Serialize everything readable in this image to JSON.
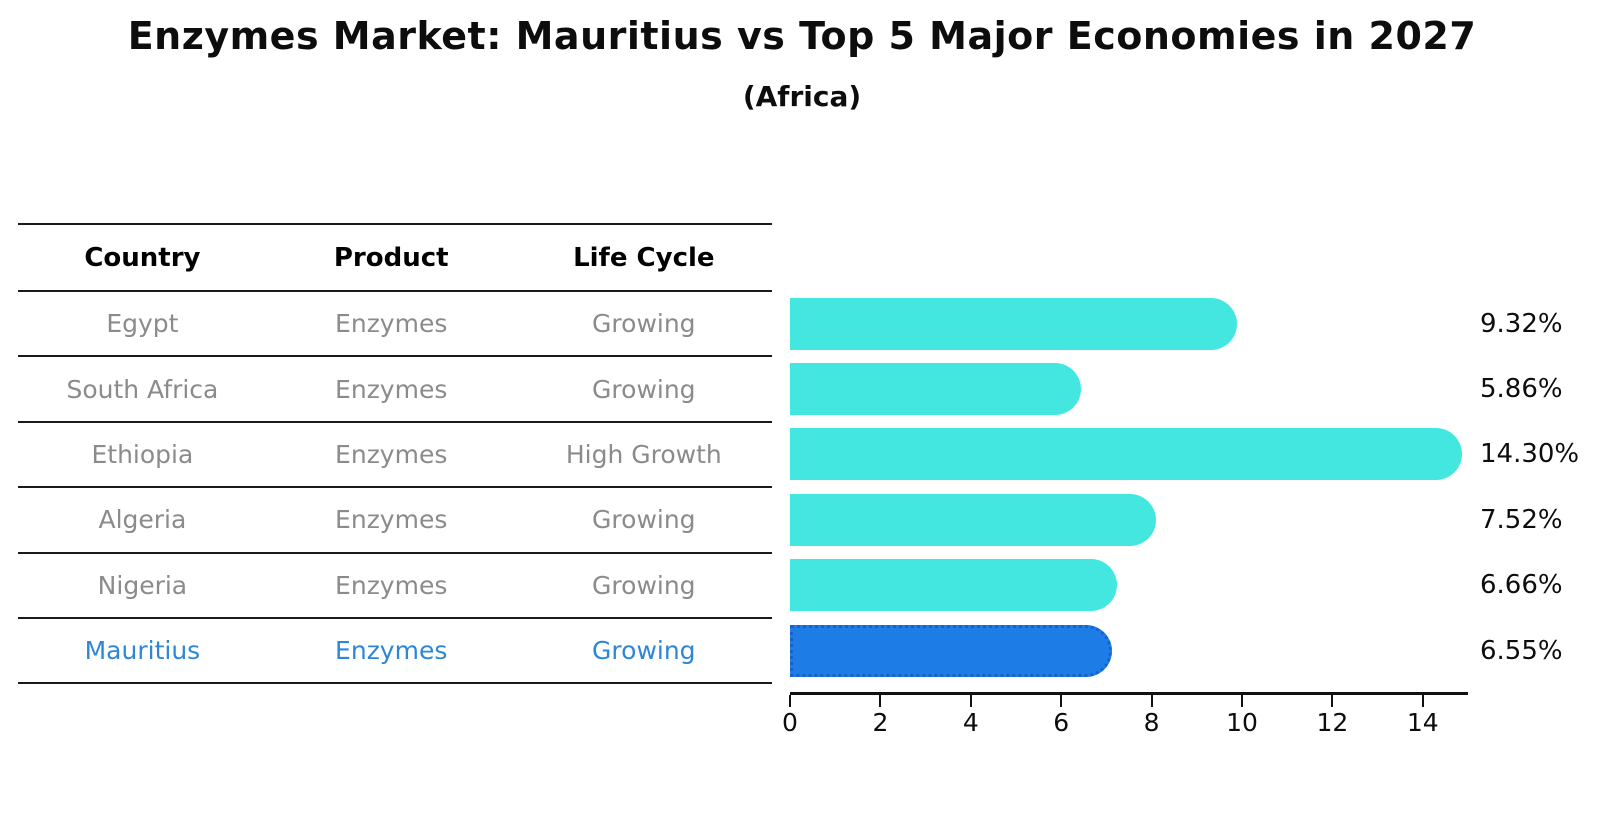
{
  "title": "Enzymes Market: Mauritius vs Top 5 Major Economies in 2027",
  "subtitle": "(Africa)",
  "table": {
    "headers": [
      "Country",
      "Product",
      "Life Cycle"
    ],
    "rows": [
      {
        "country": "Egypt",
        "product": "Enzymes",
        "life_cycle": "Growing",
        "highlight": false
      },
      {
        "country": "South Africa",
        "product": "Enzymes",
        "life_cycle": "Growing",
        "highlight": false
      },
      {
        "country": "Ethiopia",
        "product": "Enzymes",
        "life_cycle": "High Growth",
        "highlight": false
      },
      {
        "country": "Algeria",
        "product": "Enzymes",
        "life_cycle": "Growing",
        "highlight": false
      },
      {
        "country": "Nigeria",
        "product": "Enzymes",
        "life_cycle": "Growing",
        "highlight": false
      },
      {
        "country": "Mauritius",
        "product": "Enzymes",
        "life_cycle": "Growing",
        "highlight": true
      }
    ]
  },
  "chart_data": {
    "type": "bar",
    "orientation": "horizontal",
    "title": "Enzymes Market: Mauritius vs Top 5 Major Economies in 2027 (Africa)",
    "categories": [
      "Egypt",
      "South Africa",
      "Ethiopia",
      "Algeria",
      "Nigeria",
      "Mauritius"
    ],
    "values": [
      9.32,
      5.86,
      14.3,
      7.52,
      6.66,
      6.55
    ],
    "value_labels": [
      "9.32%",
      "5.86%",
      "14.30%",
      "7.52%",
      "6.66%",
      "6.55%"
    ],
    "highlight_category": "Mauritius",
    "xlabel": "",
    "ylabel": "",
    "xlim": [
      0,
      15
    ],
    "xticks": [
      0,
      2,
      4,
      6,
      8,
      10,
      12,
      14
    ],
    "grid": false,
    "legend": "none"
  },
  "colors": {
    "bar_cyan": "#44e7e0",
    "bar_highlight_blue": "#1e7ce6",
    "highlight_text_blue": "#2e86d9",
    "table_text_gray": "#8b8b8b",
    "text_black": "#0d0d0d"
  }
}
